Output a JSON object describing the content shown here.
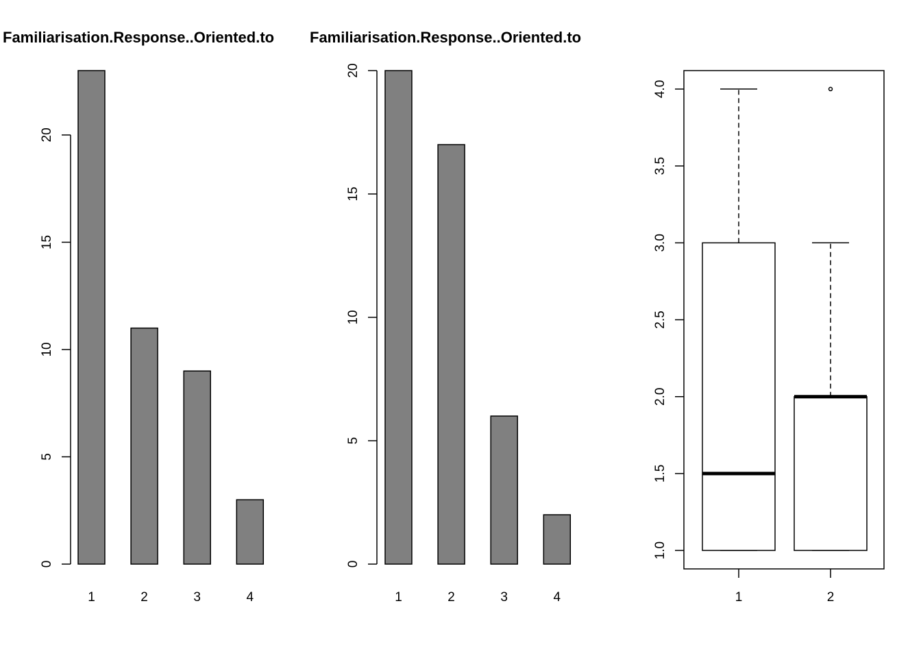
{
  "chart_data": [
    {
      "type": "bar",
      "title": "Familiarisation.Response..Oriented.to",
      "categories": [
        "1",
        "2",
        "3",
        "4"
      ],
      "values": [
        23,
        11,
        9,
        3
      ],
      "ylim": [
        0,
        23
      ],
      "yticks": [
        0,
        5,
        10,
        15,
        20
      ],
      "bar_color": "#808080",
      "grid": false
    },
    {
      "type": "bar",
      "title": "Familiarisation.Response..Oriented.to",
      "categories": [
        "1",
        "2",
        "3",
        "4"
      ],
      "values": [
        20,
        17,
        6,
        2
      ],
      "ylim": [
        0,
        20
      ],
      "yticks": [
        0,
        5,
        10,
        15,
        20
      ],
      "bar_color": "#808080",
      "grid": false
    },
    {
      "type": "box",
      "title": "",
      "categories": [
        "1",
        "2"
      ],
      "ylim": [
        0.88,
        4.12
      ],
      "yticks": [
        1.0,
        1.5,
        2.0,
        2.5,
        3.0,
        3.5,
        4.0
      ],
      "ytick_labels": [
        "1.0",
        "1.5",
        "2.0",
        "2.5",
        "3.0",
        "3.5",
        "4.0"
      ],
      "boxes": [
        {
          "min": 1,
          "q1": 1,
          "median": 1.5,
          "q3": 3,
          "max": 4,
          "outliers": []
        },
        {
          "min": 1,
          "q1": 1,
          "median": 2,
          "q3": 2,
          "max": 3,
          "outliers": [
            4
          ]
        }
      ],
      "grid": false
    }
  ]
}
